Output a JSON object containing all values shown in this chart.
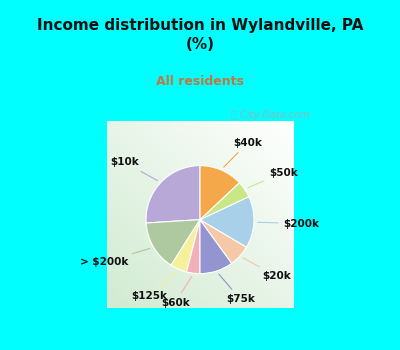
{
  "title": "Income distribution in Wylandville, PA\n(%)",
  "subtitle": "All residents",
  "title_color": "#111111",
  "subtitle_color": "#c07840",
  "bg_cyan": "#00ffff",
  "watermark": "City-Data.com",
  "labels": [
    "$10k",
    "> $200k",
    "$125k",
    "$60k",
    "$75k",
    "$20k",
    "$200k",
    "$50k",
    "$40k"
  ],
  "sizes": [
    26.0,
    15.0,
    5.0,
    4.0,
    10.0,
    6.5,
    15.5,
    5.0,
    13.0
  ],
  "colors": [
    "#b8a8d8",
    "#aec9a0",
    "#f5f09a",
    "#f2b0b8",
    "#9494d0",
    "#f5c8a8",
    "#a8d0e8",
    "#c8e888",
    "#f4a84a"
  ],
  "label_fontsize": 7.5,
  "label_color": "#111111",
  "startangle": 90,
  "title_fontsize": 11,
  "subtitle_fontsize": 9
}
